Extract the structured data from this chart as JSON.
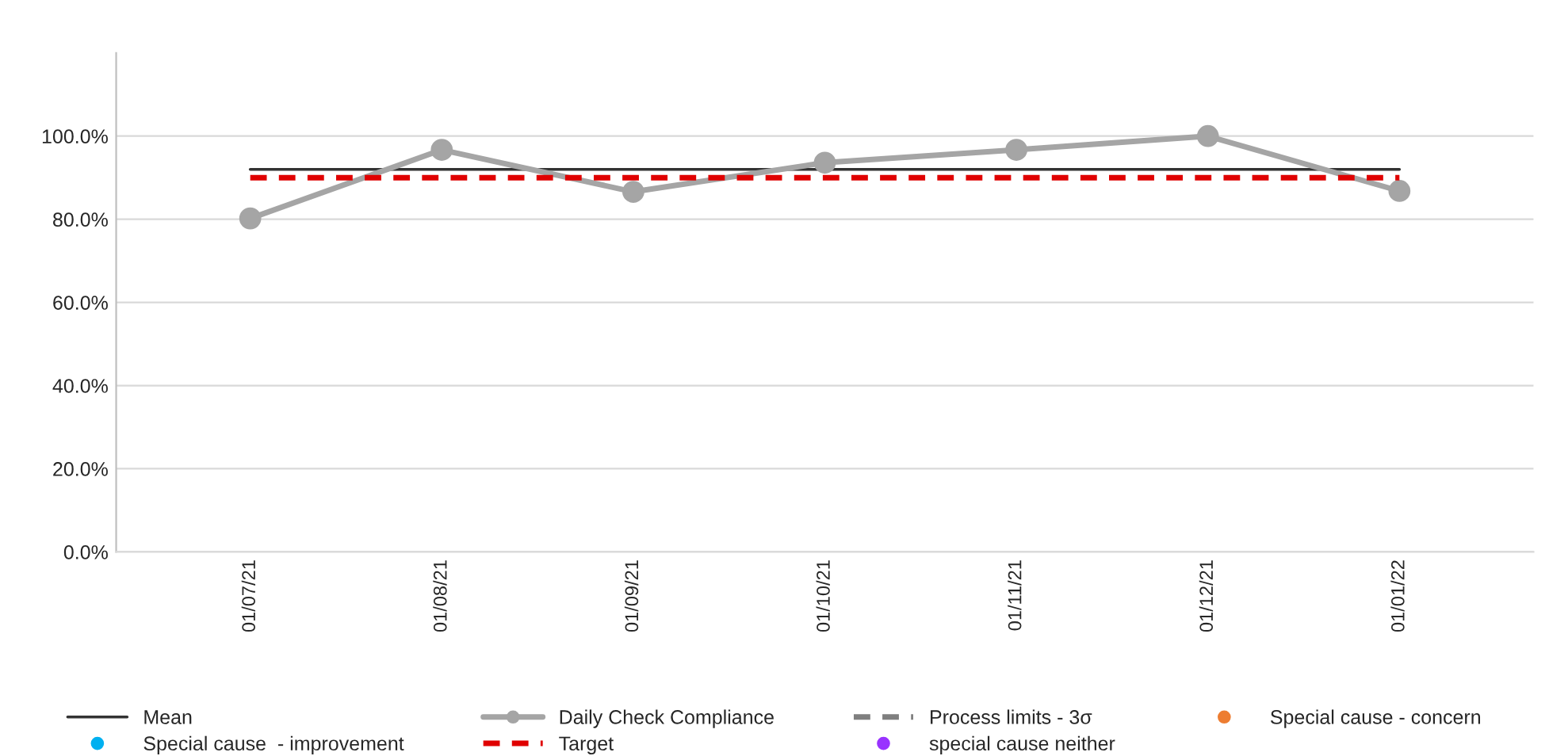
{
  "chart_data": {
    "type": "line",
    "categories": [
      "01/07/21",
      "01/08/21",
      "01/09/21",
      "01/10/21",
      "01/11/21",
      "01/12/21",
      "01/01/22"
    ],
    "series": [
      {
        "name": "Mean",
        "color": "#333333",
        "line_style": "solid",
        "marker": "none",
        "values": [
          92,
          92,
          92,
          92,
          92,
          92,
          92
        ]
      },
      {
        "name": "Daily Check Compliance",
        "color": "#a5a5a5",
        "line_style": "solid",
        "marker": "circle",
        "values": [
          80.2,
          96.7,
          86.6,
          93.6,
          96.7,
          100,
          86.8
        ]
      },
      {
        "name": "Process limits - 3σ",
        "color": "#7f7f7f",
        "line_style": "dashed",
        "marker": "none",
        "values": [
          null,
          null,
          null,
          null,
          null,
          null,
          null
        ]
      },
      {
        "name": "Special cause - concern",
        "color": "#ed7d31",
        "type": "scatter",
        "marker": "circle",
        "values": [
          null,
          null,
          null,
          null,
          null,
          null,
          null
        ]
      },
      {
        "name": "Special cause  - improvement",
        "color": "#00b0f0",
        "type": "scatter",
        "marker": "circle",
        "values": [
          null,
          null,
          null,
          null,
          null,
          null,
          null
        ]
      },
      {
        "name": "Target",
        "color": "#e00000",
        "line_style": "dashed",
        "marker": "none",
        "values": [
          90,
          90,
          90,
          90,
          90,
          90,
          90
        ]
      },
      {
        "name": "special cause neither",
        "color": "#9933ff",
        "type": "scatter",
        "marker": "circle",
        "values": [
          null,
          null,
          null,
          null,
          null,
          null,
          null
        ]
      }
    ],
    "ylim": [
      0,
      120
    ],
    "yticks": [
      {
        "value": 0,
        "label": "0.0%"
      },
      {
        "value": 20,
        "label": "20.0%"
      },
      {
        "value": 40,
        "label": "40.0%"
      },
      {
        "value": 60,
        "label": "60.0%"
      },
      {
        "value": 80,
        "label": "80.0%"
      },
      {
        "value": 100,
        "label": "100.0%"
      }
    ],
    "grid": "y",
    "legend": "bottom"
  }
}
